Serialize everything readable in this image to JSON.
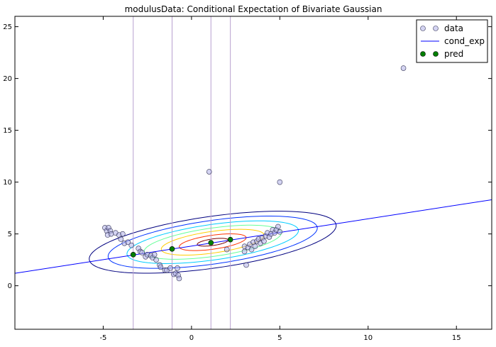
{
  "chart_data": {
    "type": "scatter",
    "title": "modulusData: Conditional Expectation of Bivariate Gaussian",
    "xlabel": "",
    "ylabel": "",
    "xlim": [
      -10,
      17
    ],
    "ylim": [
      -4.2,
      26
    ],
    "x_ticks": [
      -5,
      0,
      5,
      10,
      15
    ],
    "y_ticks": [
      0,
      5,
      10,
      15,
      20,
      25
    ],
    "grid": false,
    "legend_position": "top-right",
    "legend": [
      {
        "label": "data",
        "marker": "circle-open",
        "color": "#b0b0e8"
      },
      {
        "label": "cond_exp",
        "marker": "line",
        "color": "#0000ff"
      },
      {
        "label": "pred",
        "marker": "circle-filled",
        "color": "#007f00"
      }
    ],
    "series": [
      {
        "name": "data",
        "kind": "scatter",
        "color": "#b0b0e8",
        "points": [
          [
            -4.9,
            5.6
          ],
          [
            -4.8,
            5.3
          ],
          [
            -4.75,
            4.9
          ],
          [
            -4.7,
            5.6
          ],
          [
            -4.6,
            5.3
          ],
          [
            -4.55,
            5.0
          ],
          [
            -4.3,
            5.1
          ],
          [
            -4.1,
            4.9
          ],
          [
            -4.0,
            4.5
          ],
          [
            -3.9,
            5.0
          ],
          [
            -3.8,
            4.1
          ],
          [
            -3.6,
            4.2
          ],
          [
            -3.4,
            3.9
          ],
          [
            -3.0,
            3.6
          ],
          [
            -2.9,
            3.3
          ],
          [
            -2.8,
            3.2
          ],
          [
            -2.6,
            2.8
          ],
          [
            -2.5,
            3.0
          ],
          [
            -2.3,
            2.9
          ],
          [
            -2.2,
            2.7
          ],
          [
            -2.1,
            3.0
          ],
          [
            -2.0,
            2.5
          ],
          [
            -1.8,
            2.0
          ],
          [
            -1.75,
            1.8
          ],
          [
            -1.5,
            1.5
          ],
          [
            -1.4,
            1.5
          ],
          [
            -1.2,
            1.7
          ],
          [
            -1.0,
            1.1
          ],
          [
            -0.9,
            1.2
          ],
          [
            -0.8,
            1.7
          ],
          [
            -0.75,
            1.0
          ],
          [
            -0.7,
            0.7
          ],
          [
            1.0,
            11.0
          ],
          [
            2.0,
            3.5
          ],
          [
            3.0,
            3.8
          ],
          [
            3.0,
            3.3
          ],
          [
            3.1,
            2.0
          ],
          [
            3.2,
            3.7
          ],
          [
            3.3,
            4.0
          ],
          [
            3.4,
            3.5
          ],
          [
            3.5,
            4.2
          ],
          [
            3.6,
            3.8
          ],
          [
            3.7,
            4.3
          ],
          [
            3.8,
            4.5
          ],
          [
            3.9,
            4.1
          ],
          [
            4.0,
            4.6
          ],
          [
            4.1,
            4.3
          ],
          [
            4.2,
            4.8
          ],
          [
            4.3,
            5.1
          ],
          [
            4.4,
            4.7
          ],
          [
            4.5,
            5.0
          ],
          [
            4.6,
            5.4
          ],
          [
            4.7,
            5.1
          ],
          [
            4.8,
            5.4
          ],
          [
            4.9,
            5.7
          ],
          [
            5.0,
            5.2
          ],
          [
            5.0,
            10.0
          ],
          [
            12.0,
            21.0
          ]
        ]
      },
      {
        "name": "cond_exp",
        "kind": "line",
        "color": "#0000ff",
        "points": [
          [
            -10,
            1.2
          ],
          [
            17,
            8.3
          ]
        ]
      },
      {
        "name": "pred",
        "kind": "scatter",
        "color": "#007f00",
        "points": [
          [
            -3.3,
            3.0
          ],
          [
            -1.1,
            3.55
          ],
          [
            1.1,
            4.15
          ],
          [
            2.2,
            4.45
          ]
        ]
      }
    ],
    "vertical_lines": {
      "color": "#b8a0d0",
      "x": [
        -3.3,
        -1.1,
        1.1,
        2.2
      ]
    },
    "contours": {
      "center": [
        1.2,
        4.2
      ],
      "angle_deg": 14.7,
      "levels": [
        {
          "rx": 7.2,
          "ry": 2.45,
          "color": "#00007f"
        },
        {
          "rx": 6.1,
          "ry": 2.06,
          "color": "#0033ff"
        },
        {
          "rx": 5.0,
          "ry": 1.68,
          "color": "#00ccff"
        },
        {
          "rx": 4.0,
          "ry": 1.34,
          "color": "#66ff99"
        },
        {
          "rx": 3.0,
          "ry": 1.02,
          "color": "#ffcc00"
        },
        {
          "rx": 1.95,
          "ry": 0.66,
          "color": "#ff3300"
        },
        {
          "rx": 0.9,
          "ry": 0.31,
          "color": "#7f0000"
        }
      ]
    }
  }
}
